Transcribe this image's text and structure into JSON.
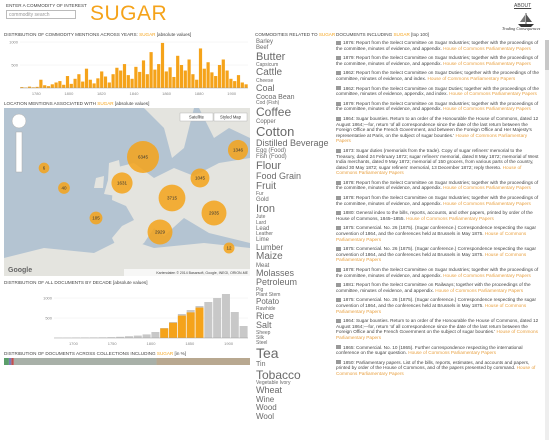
{
  "header": {
    "search_label": "ENTER A COMMODITY OF INTEREST",
    "search_placeholder": "commodity search",
    "commodity": "SUGAR",
    "about": "ABOUT",
    "logo": "Trading Consequences"
  },
  "year_chart": {
    "title": [
      "DISTRIBUTION OF COMMODITY MENTIONS ACROSS YEARS:",
      "SUGAR",
      "[absolute values]"
    ],
    "color": "#f5a31a",
    "ylim": [
      0,
      1000
    ],
    "yticks": [
      500,
      1000
    ],
    "x_labels": [
      "1780",
      "1800",
      "1820",
      "1840",
      "1860",
      "1880",
      "1900"
    ],
    "values": [
      20,
      10,
      30,
      15,
      25,
      180,
      60,
      40,
      80,
      120,
      150,
      70,
      260,
      90,
      200,
      300,
      140,
      420,
      180,
      100,
      210,
      360,
      250,
      120,
      300,
      440,
      380,
      520,
      280,
      200,
      460,
      350,
      600,
      300,
      780,
      400,
      520,
      980,
      360,
      450,
      240,
      700,
      500,
      380,
      620,
      300,
      180,
      860,
      420,
      560,
      340,
      260,
      500,
      620,
      380,
      200,
      150,
      280,
      120,
      80
    ]
  },
  "map": {
    "title": [
      "LOCATION MENTIONS ASSOCIATED WITH",
      "SUGAR",
      "[absolute values]"
    ],
    "buttons": [
      "Satellite",
      "Styled Map"
    ],
    "attribution": "Kartendaten © 2014 Basarsoft, Google, INEGI, ORION-ME",
    "google": "Google",
    "cluster_color": "#f5a31a",
    "clusters": [
      6345,
      1631,
      3715,
      2929,
      2935,
      1346,
      1045,
      105,
      40,
      12,
      6
    ]
  },
  "decade_chart": {
    "title": [
      "DISTRIBUTION OF ALL DOCUMENTS BY DECADE",
      "[absolute values]"
    ],
    "ylim": [
      0,
      1200
    ],
    "yticks": [
      500,
      1000
    ],
    "x_labels": [
      "1700",
      "1750",
      "1800",
      "1850",
      "1900"
    ],
    "series": [
      {
        "name": "All documents",
        "color": "#c8c8c8",
        "values": [
          5,
          5,
          8,
          10,
          12,
          15,
          20,
          30,
          45,
          60,
          90,
          150,
          250,
          400,
          600,
          700,
          800,
          900,
          1000,
          1100,
          650,
          300
        ]
      },
      {
        "name": "SUGAR",
        "color": "#f5a31a",
        "values": [
          0,
          0,
          0,
          0,
          0,
          0,
          0,
          0,
          0,
          0,
          0,
          0,
          240,
          380,
          560,
          640,
          760,
          0,
          0,
          0,
          0,
          0
        ]
      }
    ]
  },
  "collections": {
    "title": [
      "DISTRIBUTION OF DOCUMENTS ACROSS COLLECTIONS INCLUDING",
      "SUGAR",
      "[in %]"
    ],
    "segments": [
      {
        "color": "#5b9e6a",
        "value": 2
      },
      {
        "color": "#7a7ab8",
        "value": 1
      },
      {
        "color": "#c05050",
        "value": 1
      },
      {
        "color": "#a8b0a8",
        "value": 58
      },
      {
        "color": "#b8a890",
        "value": 38
      }
    ]
  },
  "related": {
    "title": [
      "COMMODITIES RELATED TO",
      "SUGAR"
    ],
    "words": [
      "Barley",
      "Beef",
      "Butter",
      "Capsicum",
      "Cattle",
      "Cheese",
      "Coal",
      "Cocoa Bean",
      "Cod (Fish)",
      "Coffee",
      "Copper",
      "Cotton",
      "Distilled Beverage",
      "Egg (Food)",
      "Fish (Food)",
      "Flour",
      "Food Grain",
      "Fruit",
      "Fur",
      "Gold",
      "Iron",
      "Jute",
      "Lard",
      "Lead",
      "Leather",
      "Lime",
      "Lumber",
      "Maize",
      "Meat",
      "Molasses",
      "Petroleum",
      "Pig",
      "Plant Stem",
      "Potato",
      "Rawhide",
      "Rice",
      "Salt",
      "Sheep",
      "Silk",
      "Steel",
      "Tea",
      "Tin",
      "Tobacco",
      "Vegetable Ivory",
      "Wheat",
      "Wine",
      "Wood",
      "Wool"
    ],
    "weights": [
      6,
      6,
      11,
      5,
      10,
      5,
      9,
      7,
      5,
      12,
      6,
      13,
      9,
      6,
      6,
      11,
      9,
      10,
      5,
      6,
      11,
      5,
      5,
      6,
      5,
      6,
      8,
      10,
      6,
      9,
      9,
      5,
      5,
      8,
      5,
      9,
      9,
      5,
      5,
      5,
      14,
      7,
      12,
      5,
      9,
      8,
      8,
      8
    ]
  },
  "documents": {
    "title": [
      "DOCUMENTS INCLUDING",
      "SUGAR",
      "[top 100]"
    ],
    "items": [
      {
        "text": "1876: Report from the Select Committee on Sugar Industries; together with the proceedings of the committee, minutes of evidence, and appendix.",
        "source": "House of Commons Parliamentary Papers"
      },
      {
        "text": "1879: Report from the Select Committee on Sugar Industries; together with the proceedings of the committee, minutes of evidence, and appendix.",
        "source": "House of Commons Parliamentary Papers"
      },
      {
        "text": "1862: Report from the Select Committee on Sugar Duties; together with the proceedings of the committee, minutes of evidence, and index.",
        "source": "House of Commons Parliamentary Papers"
      },
      {
        "text": "1862: Report from the Select Committee on Sugar Duties; together with the proceedings of the committee, minutes of evidence, appendix, and index.",
        "source": "House of Commons Parliamentary Papers"
      },
      {
        "text": "1879: Report from the Select Committee on Sugar Industries; together with the proceedings of the committee, minutes of evidence, and appendix.",
        "source": "House of Commons Parliamentary Papers"
      },
      {
        "text": "1864: Sugar bounties. Return to an order of the Honourable the House of Commons, dated 12 August 1864;—for, return 'of all correspondence since the date of the last return between the Foreign Office and the French Government, and between the Foreign Office and Her Majesty's representative at Paris, on the subject of sugar bounties.'",
        "source": "House of Commons Parliamentary Papers"
      },
      {
        "text": "1873: Sugar duties (memorials from the trade). Copy of sugar refiners' memorial to the Treasury, dated 24 February 1872; sugar refiners' memorial, dated 8 May 1872; memorial of West India merchants, dated 9 May 1872; memorial of 150 grocers, from various parts of the country, dated 30 May 1872; sugar refiners' memorial, 13 December 1872; reply thereto.",
        "source": "House of Commons Parliamentary Papers"
      },
      {
        "text": "1878: Report from the Select Committee on Sugar Industries; together with the proceedings of the committee, minutes of evidence, and appendix.",
        "source": "House of Commons Parliamentary Papers"
      },
      {
        "text": "1878: Report from the Select Committee on Sugar Industries; together with the proceedings of the committee, minutes of evidence, and appendix.",
        "source": "House of Commons Parliamentary Papers"
      },
      {
        "text": "1880: General index to the bills, reports, accounts, and other papers, printed by order of the House of Commons, 1845–1855.",
        "source": "House of Commons Parliamentary Papers"
      },
      {
        "text": "1875: Commercial. No. 26 (1875). (Sugar conference.) Correspondence respecting the sugar convention of 1864, and the conferences held at Brussels in May 1875.",
        "source": "House of Commons Parliamentary Papers"
      },
      {
        "text": "1875: Commercial. No. 26 (1875). (Sugar conference.) Correspondence respecting the sugar convention of 1864, and the conferences held at Brussels in May 1875.",
        "source": "House of Commons Parliamentary Papers"
      },
      {
        "text": "1878: Report from the Select Committee on Sugar Industries; together with the proceedings of the committee, minutes of evidence, and appendix.",
        "source": "House of Commons Parliamentary Papers"
      },
      {
        "text": "1881: Report from the Select Committee on Railways; together with the proceedings of the committee, minutes of evidence, and appendix.",
        "source": "House of Commons Parliamentary Papers"
      },
      {
        "text": "1875: Commercial. No. 26 (1875). (Sugar conference.) Correspondence respecting the sugar convention of 1864, and the conferences held at Brussels in May 1875.",
        "source": "House of Commons Parliamentary Papers"
      },
      {
        "text": "1864: Sugar bounties. Return to an order of the Honourable the House of Commons, dated 12 August 1864;—for, return 'of all correspondence since the date of the last return between the Foreign Office and the French Government on the subject of sugar bounties.'",
        "source": "House of Commons Parliamentary Papers"
      },
      {
        "text": "1865: Commercial. No. 10 (1865). Further correspondence respecting the international conference on the sugar question.",
        "source": "House of Commons Parliamentary Papers"
      },
      {
        "text": "1850: Parliamentary papers. List of the bills, reports, estimates, and accounts and papers, printed by order of the House of Commons, and of the papers presented by command.",
        "source": "House of Commons Parliamentary Papers"
      }
    ]
  }
}
